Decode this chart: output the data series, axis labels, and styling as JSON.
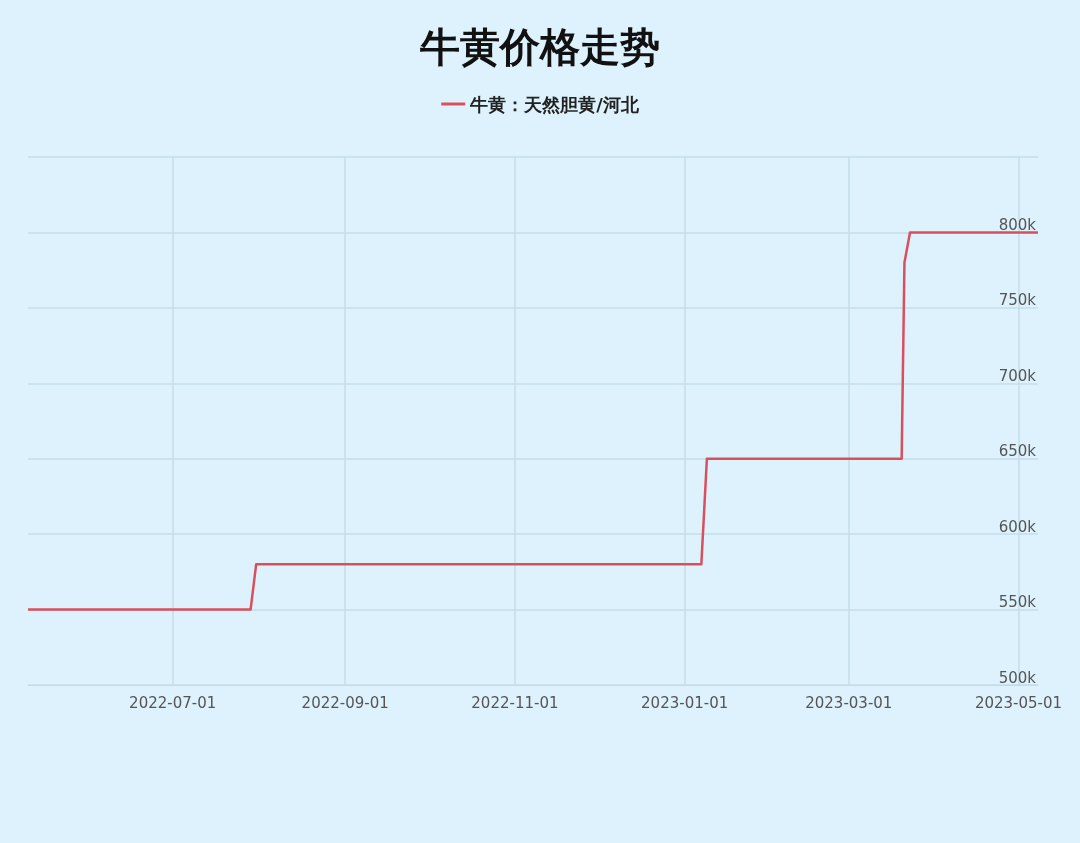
{
  "chart_data": {
    "type": "line",
    "title": "牛黄价格走势",
    "x": [
      "2022-05-10",
      "2022-07-29",
      "2022-07-31",
      "2023-01-07",
      "2023-01-09",
      "2023-03-20",
      "2023-03-21",
      "2023-03-23",
      "2023-05-08"
    ],
    "series": [
      {
        "name": "牛黄：天然胆黄/河北",
        "color": "#d9505c",
        "values": [
          550000,
          550000,
          580000,
          580000,
          650000,
          650000,
          780000,
          800000,
          800000
        ]
      }
    ],
    "xlim": [
      "2022-05-10",
      "2023-05-08"
    ],
    "xticks": [
      "2022-07-01",
      "2022-09-01",
      "2022-11-01",
      "2023-01-01",
      "2023-03-01",
      "2023-05-01"
    ],
    "ylim": [
      500000,
      850000
    ],
    "yticks": [
      {
        "value": 500000,
        "label": "500k"
      },
      {
        "value": 550000,
        "label": "550k"
      },
      {
        "value": 600000,
        "label": "600k"
      },
      {
        "value": 650000,
        "label": "650k"
      },
      {
        "value": 700000,
        "label": "700k"
      },
      {
        "value": 750000,
        "label": "750k"
      },
      {
        "value": 800000,
        "label": "800k"
      },
      {
        "value": 850000,
        "label": null
      }
    ],
    "grid": true,
    "legend": "top",
    "marker": "none",
    "line_style": "solid"
  }
}
